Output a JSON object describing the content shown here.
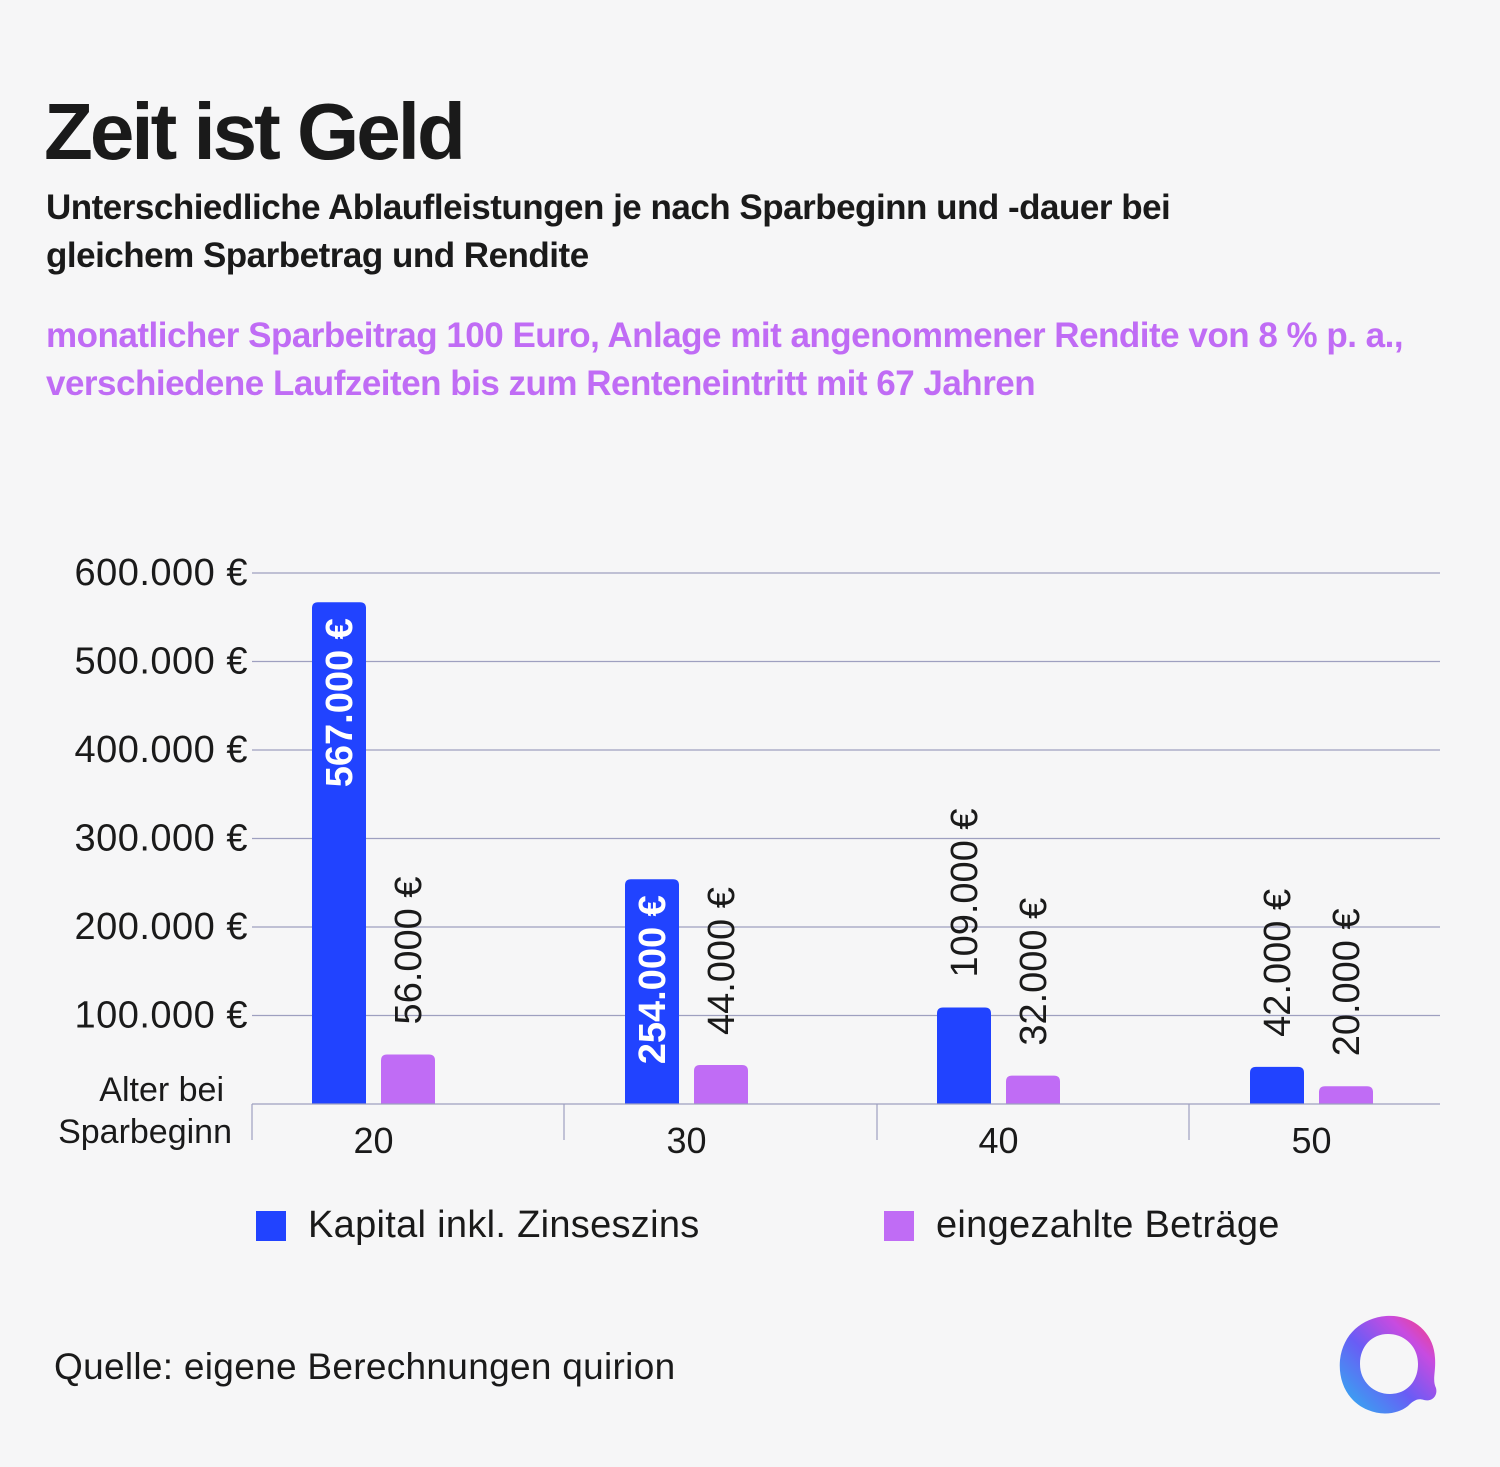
{
  "header": {
    "title": "Zeit ist Geld",
    "subtitle": "Unterschiedliche Ablaufleistungen je nach Sparbeginn und -dauer bei gleichem Sparbetrag und Rendite",
    "description": "monatlicher Sparbeitrag 100 Euro, Anlage mit angenommener Rendite von 8 % p. a., verschiedene Laufzeiten bis zum Renteneintritt mit 67 Jahren"
  },
  "chart_data": {
    "type": "bar",
    "xlabel": "Alter bei Sparbeginn",
    "ylabel": "",
    "ylim": [
      0,
      600000
    ],
    "yticks": [
      100000,
      200000,
      300000,
      400000,
      500000,
      600000
    ],
    "ytick_labels": [
      "100.000 €",
      "200.000 €",
      "300.000 €",
      "400.000 €",
      "500.000 €",
      "600.000 €"
    ],
    "grid": true,
    "categories": [
      "20",
      "30",
      "40",
      "50"
    ],
    "series": [
      {
        "name": "Kapital inkl. Zinseszins",
        "color": "#2143ff",
        "values": [
          567000,
          254000,
          109000,
          42000
        ],
        "labels": [
          "567.000 €",
          "254.000 €",
          "109.000 €",
          "42.000 €"
        ]
      },
      {
        "name": "eingezahlte Beträge",
        "color": "#c06cf5",
        "values": [
          56000,
          44000,
          32000,
          20000
        ],
        "labels": [
          "56.000 €",
          "44.000 €",
          "32.000 €",
          "20.000 €"
        ]
      }
    ],
    "legend_position": "bottom"
  },
  "legend": {
    "items": [
      {
        "label": "Kapital inkl. Zinseszins",
        "color": "#2143ff"
      },
      {
        "label": "eingezahlte Beträge",
        "color": "#c06cf5"
      }
    ]
  },
  "footer": {
    "source": "Quelle: eigene Berechnungen quirion"
  },
  "logo": {
    "icon": "quirion-logo-icon"
  },
  "colors": {
    "background": "#f6f6f7",
    "text": "#1a1a1a",
    "accent": "#c06cf5",
    "grid": "#9ea0c0"
  }
}
